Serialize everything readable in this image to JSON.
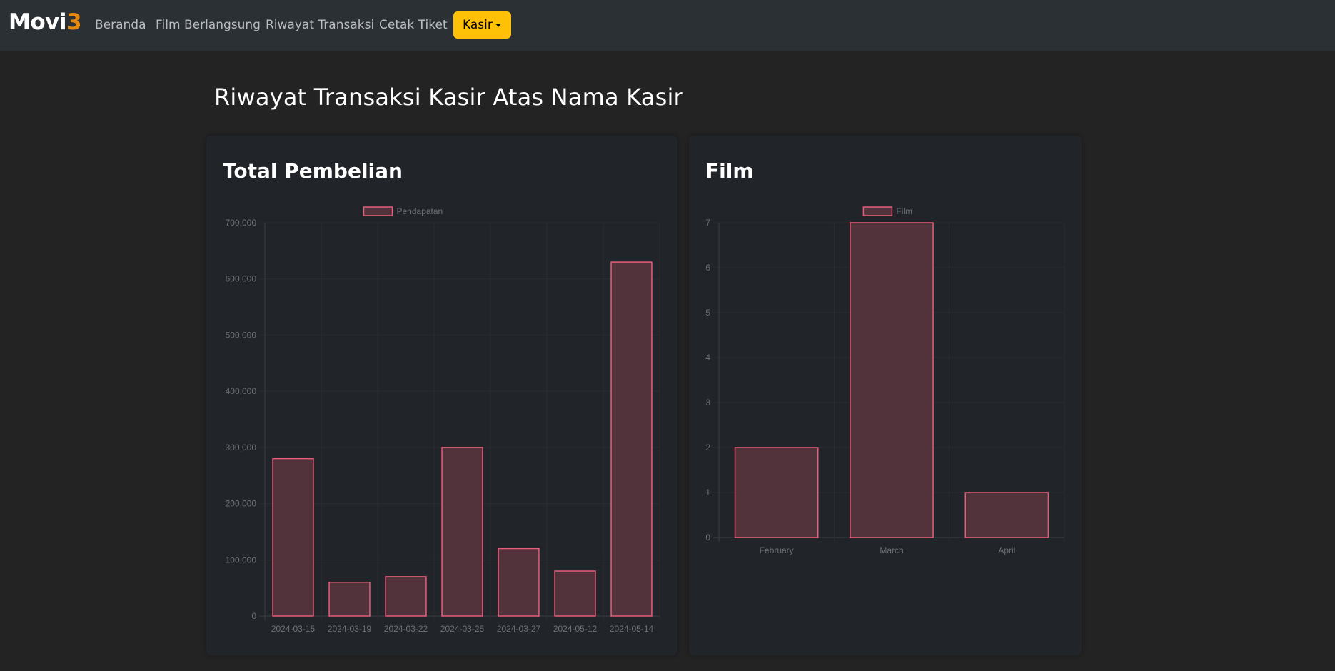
{
  "navbar": {
    "brand_main": "Movi",
    "brand_accent": "3",
    "links": [
      "Beranda",
      "Film Berlangsung",
      "Riwayat Transaksi",
      "Cetak Tiket"
    ],
    "dropdown_label": "Kasir"
  },
  "page": {
    "title": "Riwayat Transaksi Kasir Atas Nama Kasir"
  },
  "colors": {
    "accent": "#ffc107",
    "bar_fill": "#52323b",
    "bar_border": "#e85d7a"
  },
  "cards": {
    "left_title": "Total Pembelian",
    "right_title": "Film"
  },
  "chart_data": [
    {
      "type": "bar",
      "legend": [
        "Pendapatan"
      ],
      "legend_position": "top-center",
      "categories": [
        "2024-03-15",
        "2024-03-19",
        "2024-03-22",
        "2024-03-25",
        "2024-03-27",
        "2024-05-12",
        "2024-05-14"
      ],
      "series": [
        {
          "name": "Pendapatan",
          "values": [
            280000,
            60000,
            70000,
            300000,
            120000,
            80000,
            630000
          ]
        }
      ],
      "ylim": [
        0,
        700000
      ],
      "yticks": [
        "0",
        "100,000",
        "200,000",
        "300,000",
        "400,000",
        "500,000",
        "600,000",
        "700,000"
      ],
      "grid": true
    },
    {
      "type": "bar",
      "legend": [
        "Film"
      ],
      "legend_position": "top-center",
      "categories": [
        "February",
        "March",
        "April"
      ],
      "series": [
        {
          "name": "Film",
          "values": [
            2,
            7,
            1
          ]
        }
      ],
      "ylim": [
        0,
        7
      ],
      "yticks": [
        "0",
        "1",
        "2",
        "3",
        "4",
        "5",
        "6",
        "7"
      ],
      "grid": true
    }
  ]
}
